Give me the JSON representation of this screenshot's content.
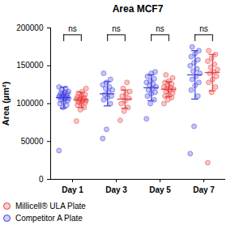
{
  "chart_data": {
    "type": "scatter",
    "title": "Area MCF7",
    "y_label": "Area (µm²)",
    "categories": [
      "Day 1",
      "Day 3",
      "Day 5",
      "Day 7"
    ],
    "ylim": [
      0,
      200000
    ],
    "yticks": [
      0,
      50000,
      100000,
      150000,
      200000
    ],
    "marker": "circle",
    "comparisons": [
      "ns",
      "ns",
      "ns",
      "ns"
    ],
    "series": [
      {
        "name": "Millicell® ULA Plate",
        "color": "#e83a3a",
        "values": [
          [
            77000,
            92000,
            95000,
            98000,
            100000,
            101000,
            102000,
            103000,
            104000,
            105000,
            106000,
            106000,
            107000,
            108000,
            109000,
            110000,
            112000,
            114000,
            116000,
            120000
          ],
          [
            78000,
            90000,
            95000,
            100000,
            104000,
            107000,
            110000,
            113000,
            116000,
            120000,
            128000
          ],
          [
            100000,
            105000,
            108000,
            110000,
            112000,
            114000,
            116000,
            118000,
            119000,
            120000,
            121000,
            122000,
            124000,
            126000,
            128000,
            130000,
            134000,
            138000
          ],
          [
            22000,
            115000,
            122000,
            128000,
            132000,
            136000,
            140000,
            142000,
            145000,
            148000,
            152000,
            156000,
            160000,
            165000,
            170000
          ]
        ],
        "mean": [
          105000,
          106000,
          119000,
          141000
        ],
        "sd": [
          10000,
          12000,
          10000,
          24000
        ]
      },
      {
        "name": "Competitor A Plate",
        "color": "#3d3de0",
        "values": [
          [
            38000,
            95000,
            98000,
            100000,
            102000,
            104000,
            105000,
            106000,
            107000,
            108000,
            108000,
            109000,
            110000,
            110000,
            111000,
            112000,
            113000,
            114000,
            115000,
            116000,
            118000,
            120000,
            122000
          ],
          [
            54000,
            66000,
            100000,
            105000,
            108000,
            110000,
            112000,
            115000,
            118000,
            120000,
            122000,
            125000,
            128000,
            132000,
            140000
          ],
          [
            80000,
            100000,
            105000,
            110000,
            113000,
            115000,
            118000,
            120000,
            122000,
            124000,
            126000,
            128000,
            130000,
            133000,
            136000,
            140000,
            142000
          ],
          [
            34000,
            70000,
            110000,
            118000,
            124000,
            128000,
            132000,
            136000,
            140000,
            143000,
            146000,
            150000,
            154000,
            158000,
            162000,
            166000,
            170000,
            175000
          ]
        ],
        "mean": [
          108000,
          113000,
          121000,
          138000
        ],
        "sd": [
          14000,
          16000,
          17000,
          32000
        ]
      }
    ]
  }
}
